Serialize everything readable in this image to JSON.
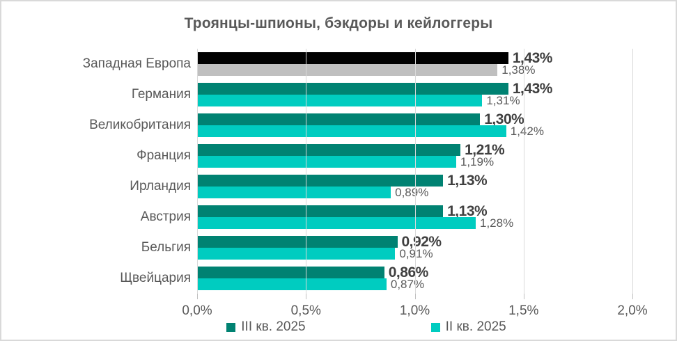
{
  "colors": {
    "background": "#FFFFFF",
    "border": "#D9D9D9",
    "gridline": "#D9D9D9",
    "tickmark": "#BFBFBF",
    "title": "#595959",
    "axis_text": "#595959",
    "label_bold": "#404040",
    "label_regular": "#595959",
    "series1": "#008272",
    "series2": "#00CCC0",
    "highlight_row_series1": "#000000",
    "highlight_row_series2": "#BFBFBF"
  },
  "chart_data": {
    "type": "bar",
    "orientation": "horizontal",
    "title": "Троянцы-шпионы, бэкдоры и кейлоггеры",
    "categories": [
      "Западная Европа",
      "Германия",
      "Великобритания",
      "Франция",
      "Ирландия",
      "Австрия",
      "Бельгия",
      "Щвейцария"
    ],
    "xlim": [
      0,
      2.0
    ],
    "x_tick_labels": [
      "0,0%",
      "0,5%",
      "1,0%",
      "1,5%",
      "2,0%"
    ],
    "grid": true,
    "legend_position": "bottom-center",
    "series": [
      {
        "name": "III кв. 2025",
        "color": "#008272",
        "values": [
          1.43,
          1.43,
          1.3,
          1.21,
          1.13,
          1.13,
          0.92,
          0.86
        ],
        "value_labels": [
          "1,43%",
          "1,43%",
          "1,30%",
          "1,21%",
          "1,13%",
          "1,13%",
          "0,92%",
          "0,86%"
        ],
        "bar_colors": [
          "#000000",
          "#008272",
          "#008272",
          "#008272",
          "#008272",
          "#008272",
          "#008272",
          "#008272"
        ]
      },
      {
        "name": "II кв. 2025",
        "color": "#00CCC0",
        "values": [
          1.38,
          1.31,
          1.42,
          1.19,
          0.89,
          1.28,
          0.91,
          0.87
        ],
        "value_labels": [
          "1,38%",
          "1,31%",
          "1,42%",
          "1,19%",
          "0,89%",
          "1,28%",
          "0,91%",
          "0,87%"
        ],
        "bar_colors": [
          "#BFBFBF",
          "#00CCC0",
          "#00CCC0",
          "#00CCC0",
          "#00CCC0",
          "#00CCC0",
          "#00CCC0",
          "#00CCC0"
        ]
      }
    ]
  }
}
